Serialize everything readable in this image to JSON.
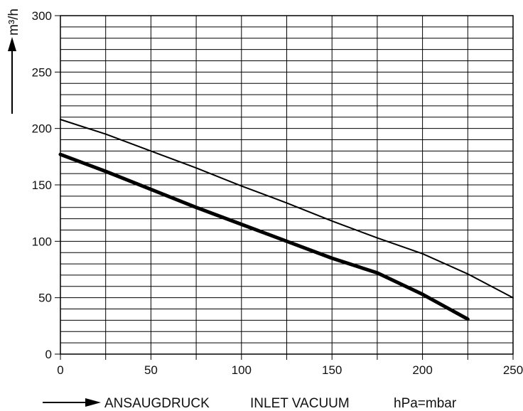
{
  "chart_data": {
    "type": "line",
    "title": "",
    "ylabel": "m³/h",
    "xlabel_parts": [
      "ANSAUGDRUCK",
      "INLET VACUUM",
      "hPa=mbar"
    ],
    "xlim": [
      0,
      250
    ],
    "ylim": [
      0,
      300
    ],
    "x_ticks": [
      0,
      50,
      100,
      150,
      200,
      250
    ],
    "y_ticks": [
      0,
      50,
      100,
      150,
      200,
      250,
      300
    ],
    "x_tick_labels": [
      "0",
      "50",
      "100",
      "150",
      "200",
      "250"
    ],
    "y_tick_labels": [
      "0",
      "50",
      "100",
      "150",
      "200",
      "250",
      "300"
    ],
    "grid": true,
    "legend": "none",
    "series": [
      {
        "style": "thin",
        "color": "#000000",
        "x": [
          0,
          25,
          50,
          75,
          100,
          125,
          150,
          175,
          200,
          225,
          250
        ],
        "y": [
          208,
          195,
          180,
          165,
          149,
          134,
          118,
          103,
          89,
          71,
          50
        ]
      },
      {
        "style": "thick",
        "color": "#000000",
        "x": [
          0,
          25,
          50,
          75,
          100,
          125,
          150,
          175,
          200,
          225
        ],
        "y": [
          177,
          162,
          146,
          130,
          115,
          100,
          85,
          72,
          53,
          31
        ]
      }
    ]
  }
}
